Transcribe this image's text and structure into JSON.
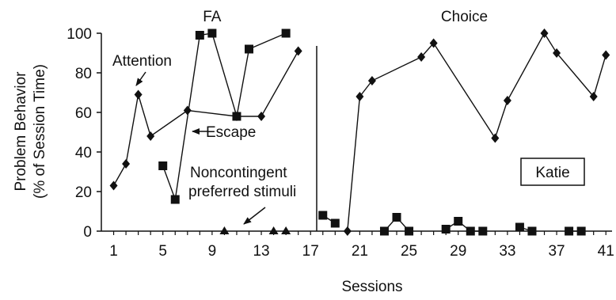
{
  "chart_data": {
    "type": "line",
    "xlabel": "Sessions",
    "ylabel_lines": [
      "Problem Behavior",
      "(% of Session Time)"
    ],
    "xlim": [
      0,
      41.5
    ],
    "ylim": [
      0,
      100
    ],
    "x_ticks": [
      1,
      5,
      9,
      13,
      17,
      21,
      25,
      29,
      33,
      37,
      41
    ],
    "y_ticks": [
      0,
      20,
      40,
      60,
      80,
      100
    ],
    "phases": [
      {
        "label": "FA",
        "x": 9
      },
      {
        "label": "Choice",
        "x": 29.5
      }
    ],
    "phase_line_x": 17.5,
    "annotations": {
      "attention": "Attention",
      "escape": "Escape",
      "noncontingent_line1": "Noncontingent",
      "noncontingent_line2": "preferred stimuli",
      "participant": "Katie"
    },
    "series": [
      {
        "key": "attention",
        "marker": "diamond",
        "segments": [
          [
            [
              1,
              23
            ],
            [
              2,
              34
            ],
            [
              3,
              69
            ],
            [
              4,
              48
            ],
            [
              7,
              61
            ],
            [
              11,
              58
            ],
            [
              13,
              58
            ],
            [
              16,
              91
            ]
          ]
        ]
      },
      {
        "key": "escape",
        "marker": "square",
        "segments": [
          [
            [
              5,
              33
            ],
            [
              6,
              16
            ],
            [
              8,
              99
            ],
            [
              9,
              100
            ],
            [
              11,
              58
            ],
            [
              12,
              92
            ],
            [
              15,
              100
            ]
          ]
        ]
      },
      {
        "key": "noncontingent",
        "marker": "triangle",
        "segments": [
          [
            [
              10,
              0
            ]
          ],
          [
            [
              14,
              0
            ]
          ],
          [
            [
              15,
              0
            ]
          ]
        ]
      },
      {
        "key": "choice-diamond",
        "marker": "diamond",
        "segments": [
          [
            [
              20,
              0
            ],
            [
              21,
              68
            ],
            [
              22,
              76
            ],
            [
              26,
              88
            ],
            [
              27,
              95
            ],
            [
              32,
              47
            ],
            [
              33,
              66
            ],
            [
              36,
              100
            ],
            [
              37,
              90
            ],
            [
              40,
              68
            ],
            [
              41,
              89
            ]
          ]
        ]
      },
      {
        "key": "choice-square",
        "marker": "square",
        "segments": [
          [
            [
              18,
              8
            ],
            [
              19,
              4
            ]
          ],
          [
            [
              23,
              0
            ],
            [
              24,
              7
            ],
            [
              25,
              0
            ]
          ],
          [
            [
              28,
              1
            ],
            [
              29,
              5
            ],
            [
              30,
              0
            ],
            [
              31,
              0
            ]
          ],
          [
            [
              34,
              2
            ],
            [
              35,
              0
            ]
          ],
          [
            [
              38,
              0
            ],
            [
              39,
              0
            ]
          ]
        ]
      }
    ]
  }
}
